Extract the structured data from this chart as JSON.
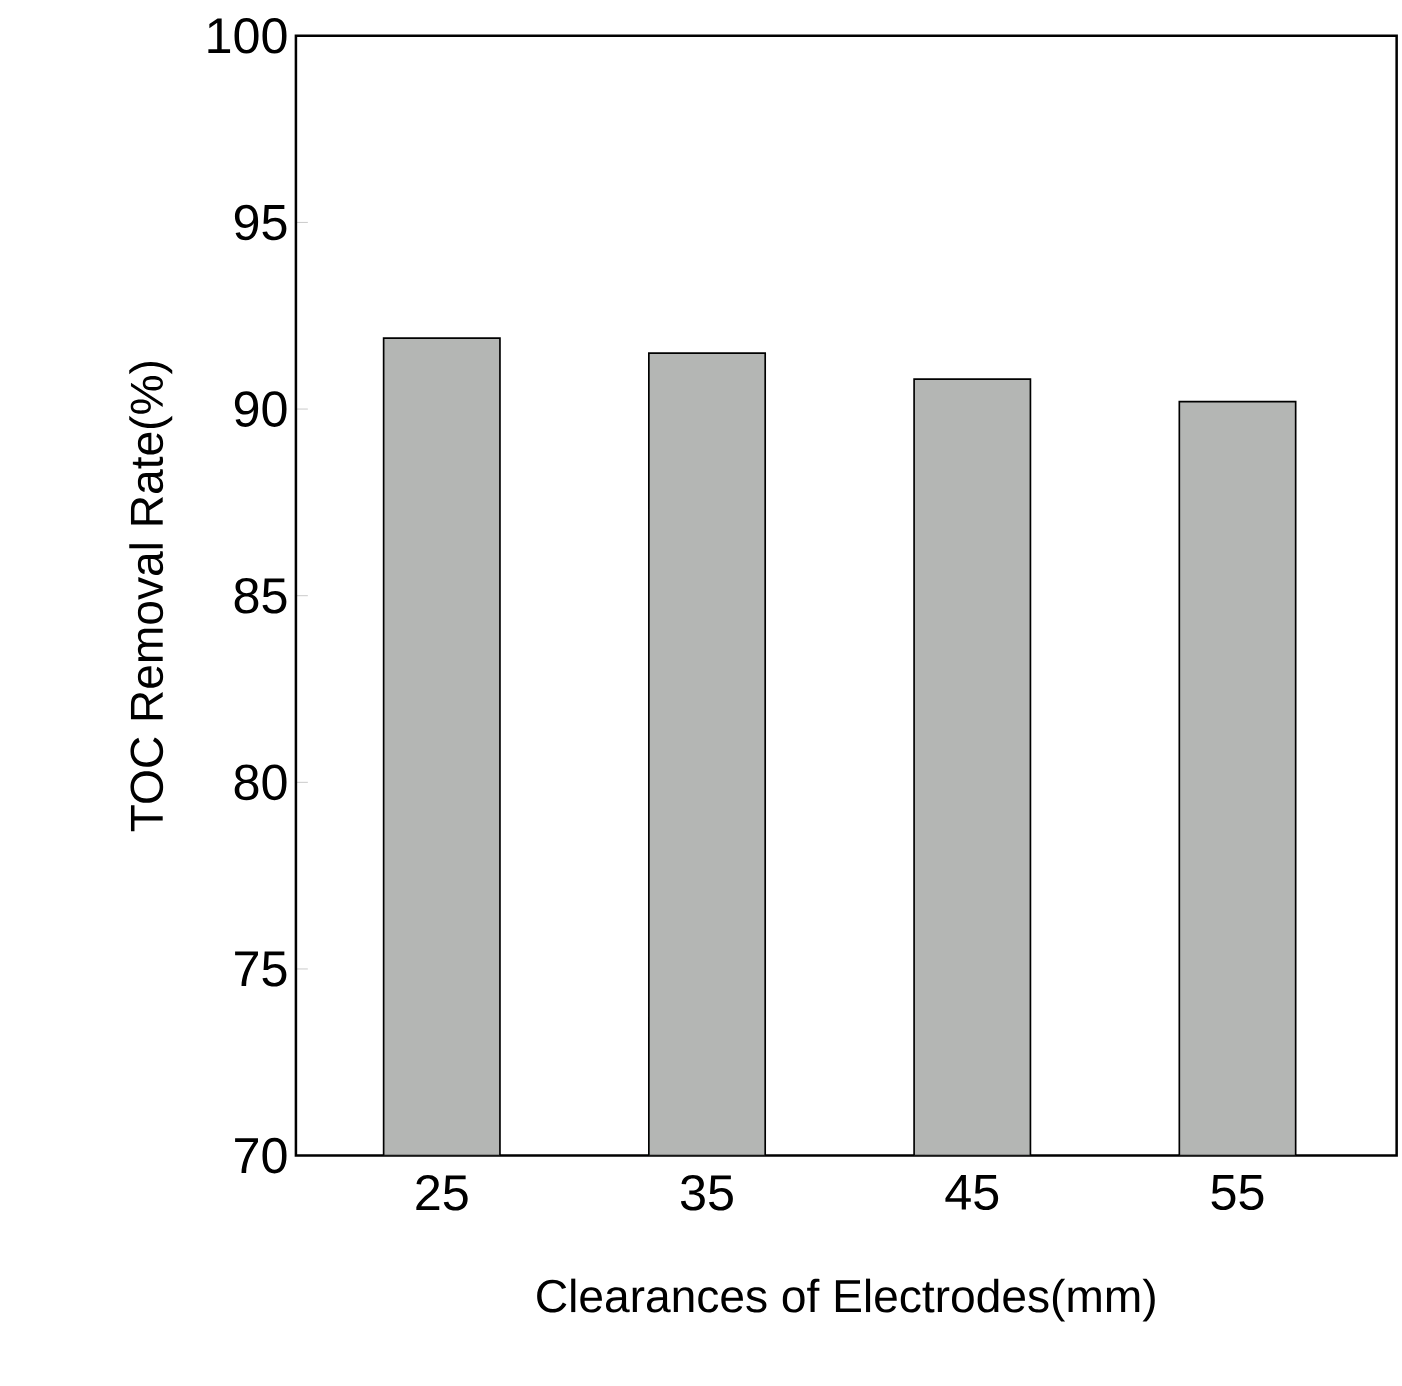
{
  "chart_data": {
    "type": "bar",
    "xlabel": "Clearances of Electrodes(mm)",
    "ylabel": "TOC Removal Rate(%)",
    "categories": [
      "25",
      "35",
      "45",
      "55"
    ],
    "values": [
      91.9,
      91.5,
      90.8,
      90.2
    ],
    "color": "#b4b6b4",
    "ylim": [
      70,
      100
    ],
    "yticks": [
      70,
      75,
      80,
      85,
      90,
      95,
      100
    ],
    "grid": false
  }
}
